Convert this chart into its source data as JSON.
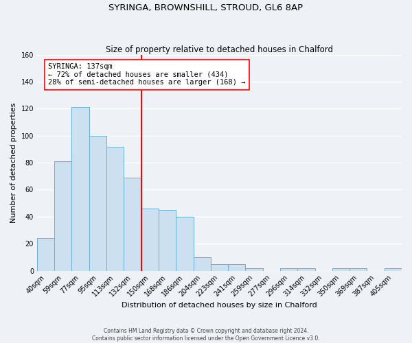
{
  "title": "SYRINGA, BROWNSHILL, STROUD, GL6 8AP",
  "subtitle": "Size of property relative to detached houses in Chalford",
  "xlabel": "Distribution of detached houses by size in Chalford",
  "ylabel": "Number of detached properties",
  "bar_labels": [
    "40sqm",
    "59sqm",
    "77sqm",
    "95sqm",
    "113sqm",
    "132sqm",
    "150sqm",
    "168sqm",
    "186sqm",
    "204sqm",
    "223sqm",
    "241sqm",
    "259sqm",
    "277sqm",
    "296sqm",
    "314sqm",
    "332sqm",
    "350sqm",
    "369sqm",
    "387sqm",
    "405sqm"
  ],
  "bar_values": [
    24,
    81,
    121,
    100,
    92,
    69,
    46,
    45,
    40,
    10,
    5,
    5,
    2,
    0,
    2,
    2,
    0,
    2,
    2,
    0,
    2
  ],
  "bar_color": "#cce0f0",
  "bar_edge_color": "#6aaed6",
  "vline_x": 5.5,
  "vline_color": "red",
  "vline_linewidth": 1.5,
  "annotation_title": "SYRINGA: 137sqm",
  "annotation_line1": "← 72% of detached houses are smaller (434)",
  "annotation_line2": "28% of semi-detached houses are larger (168) →",
  "annotation_box_color": "white",
  "annotation_box_edge": "red",
  "ylim": [
    0,
    160
  ],
  "yticks": [
    0,
    20,
    40,
    60,
    80,
    100,
    120,
    140,
    160
  ],
  "footer1": "Contains HM Land Registry data © Crown copyright and database right 2024.",
  "footer2": "Contains public sector information licensed under the Open Government Licence v3.0.",
  "background_color": "#eef2f7",
  "grid_color": "white",
  "title_fontsize": 9.5,
  "subtitle_fontsize": 8.5,
  "axis_label_fontsize": 8,
  "tick_fontsize": 7,
  "annotation_fontsize": 7.5,
  "footer_fontsize": 5.5
}
